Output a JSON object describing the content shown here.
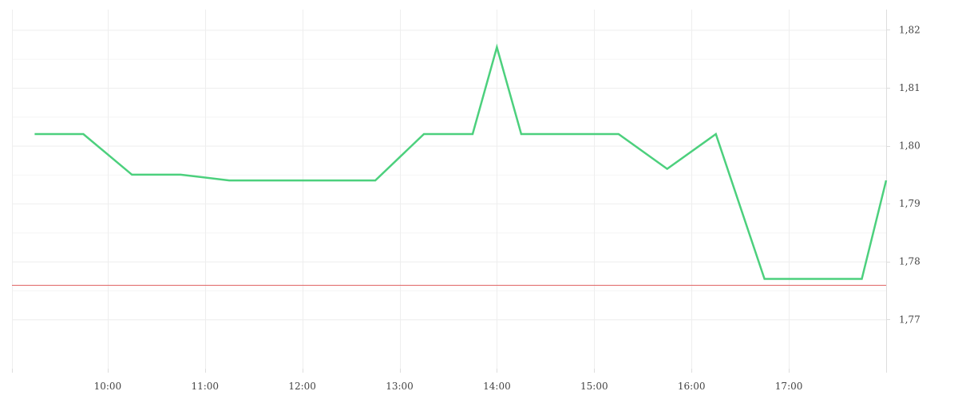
{
  "chart_data": {
    "type": "line",
    "title": "",
    "xlabel": "",
    "ylabel": "",
    "x_ticks": [
      "10:00",
      "11:00",
      "12:00",
      "13:00",
      "14:00",
      "15:00",
      "16:00",
      "17:00"
    ],
    "y_ticks": [
      "1,77",
      "1,78",
      "1,79",
      "1,80",
      "1,81",
      "1,82"
    ],
    "y_tick_values": [
      1.77,
      1.78,
      1.79,
      1.8,
      1.81,
      1.82
    ],
    "xlim": [
      "09:01",
      "18:00"
    ],
    "ylim": [
      1.7615,
      1.8235
    ],
    "grid": true,
    "legend": "none",
    "series": [
      {
        "color": "#4cd07d",
        "points": [
          [
            "09:15",
            1.802
          ],
          [
            "09:45",
            1.802
          ],
          [
            "10:15",
            1.795
          ],
          [
            "10:45",
            1.795
          ],
          [
            "11:15",
            1.794
          ],
          [
            "11:45",
            1.794
          ],
          [
            "12:15",
            1.794
          ],
          [
            "12:45",
            1.794
          ],
          [
            "13:15",
            1.802
          ],
          [
            "13:45",
            1.802
          ],
          [
            "14:00",
            1.817
          ],
          [
            "14:15",
            1.802
          ],
          [
            "14:45",
            1.802
          ],
          [
            "15:15",
            1.802
          ],
          [
            "15:45",
            1.796
          ],
          [
            "16:15",
            1.802
          ],
          [
            "16:45",
            1.777
          ],
          [
            "17:15",
            1.777
          ],
          [
            "17:45",
            1.777
          ],
          [
            "18:00",
            1.794
          ]
        ]
      }
    ],
    "reference_line": {
      "value": 1.776,
      "color": "#e06666"
    },
    "colors": {
      "grid": "#eeeeee",
      "axis": "#dddddd",
      "tick_text": "#444444"
    }
  }
}
